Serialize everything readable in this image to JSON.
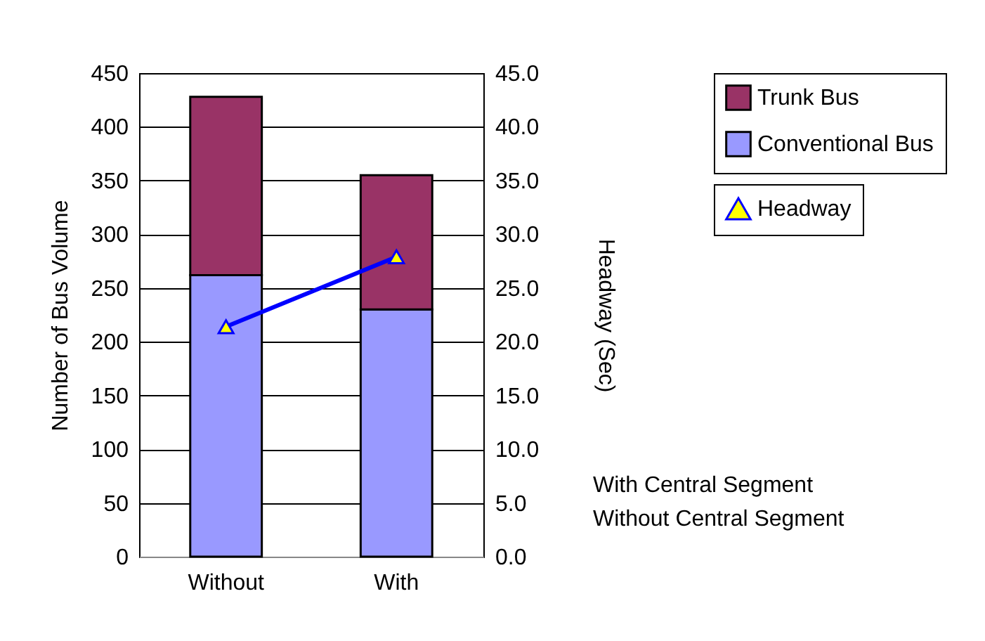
{
  "chart_data": {
    "type": "bar",
    "stacked": true,
    "categories": [
      "Without",
      "With"
    ],
    "series": [
      {
        "name": "Conventional Bus",
        "color": "#9999ff",
        "values": [
          262,
          230
        ]
      },
      {
        "name": "Trunk Bus",
        "color": "#993366",
        "values": [
          166,
          125
        ]
      },
      {
        "name": "Headway",
        "type": "line",
        "axis": "y2",
        "color": "#0000ff",
        "marker": "triangle",
        "values": [
          21.4,
          27.9
        ]
      }
    ],
    "ylabel": "Number of Bus Volume",
    "y2label": "Headway (Sec)",
    "ylim": [
      0,
      450
    ],
    "yticks": [
      0,
      50,
      100,
      150,
      200,
      250,
      300,
      350,
      400,
      450
    ],
    "y2lim": [
      0,
      45
    ],
    "y2ticks": [
      {
        "value": 0,
        "label": "0.0"
      },
      {
        "value": 5,
        "label": "5.0"
      },
      {
        "value": 10,
        "label": "10.0"
      },
      {
        "value": 15,
        "label": "15.0"
      },
      {
        "value": 20,
        "label": "20.0"
      },
      {
        "value": 25,
        "label": "25.0"
      },
      {
        "value": 30,
        "label": "30.0"
      },
      {
        "value": 35,
        "label": "35.0"
      },
      {
        "value": 40,
        "label": "40.0"
      },
      {
        "value": 45,
        "label": "45.0"
      }
    ],
    "grid": "y",
    "legend": "right",
    "annotations": [
      "With Central Segment",
      "Without Central Segment"
    ]
  }
}
